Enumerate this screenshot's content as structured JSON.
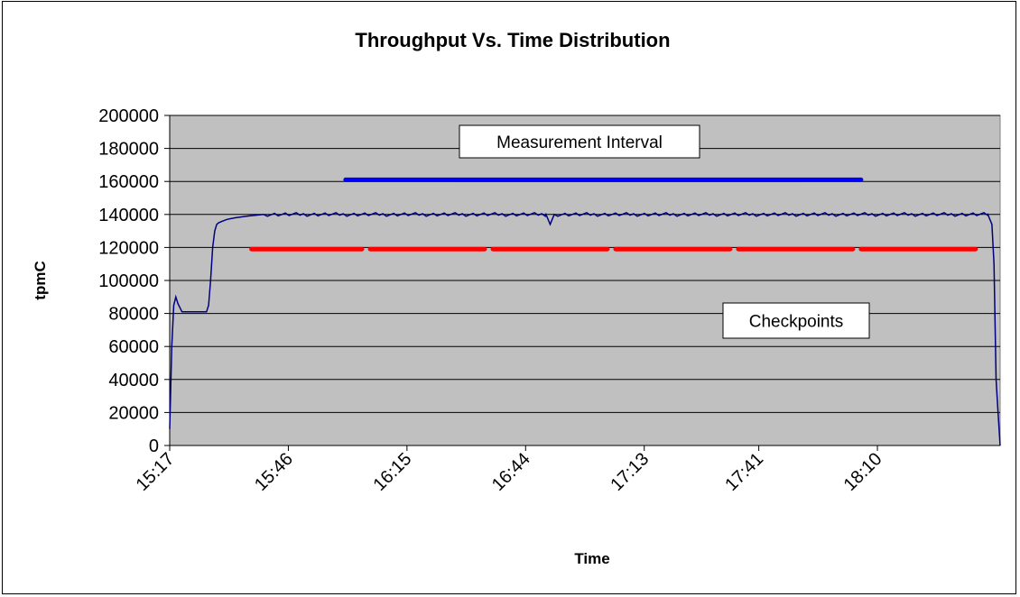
{
  "chart_data": {
    "type": "line",
    "title": "Throughput Vs. Time Distribution",
    "xlabel": "Time",
    "ylabel": "tpmC",
    "ylim": [
      0,
      200000
    ],
    "yticks": [
      0,
      20000,
      40000,
      60000,
      80000,
      100000,
      120000,
      140000,
      160000,
      180000,
      200000
    ],
    "x_start": "15:17",
    "x_end": "18:40",
    "xticks": [
      "15:17",
      "15:46",
      "16:15",
      "16:44",
      "17:13",
      "17:41",
      "18:10"
    ],
    "grid": true,
    "plot_background": "#c0c0c0",
    "series": [
      {
        "color": "#000080",
        "points": [
          [
            "15:17",
            10000
          ],
          [
            "15:17.5",
            60000
          ],
          [
            "15:18",
            85000
          ],
          [
            "15:18.5",
            90000
          ],
          [
            "15:19",
            86000
          ],
          [
            "15:20",
            81000
          ],
          [
            "15:21",
            81000
          ],
          [
            "15:25",
            81000
          ],
          [
            "15:26",
            81000
          ],
          [
            "15:26.5",
            85000
          ],
          [
            "15:27",
            100000
          ],
          [
            "15:27.5",
            120000
          ],
          [
            "15:28",
            130000
          ],
          [
            "15:28.5",
            134000
          ],
          [
            "15:29",
            135000
          ],
          [
            "15:30",
            136000
          ],
          [
            "15:31",
            137000
          ],
          [
            "15:33",
            138000
          ],
          [
            "15:36",
            139000
          ],
          [
            "15:40",
            140000
          ],
          [
            "16:49",
            140000
          ],
          [
            "16:50",
            134000
          ],
          [
            "16:51",
            140000
          ],
          [
            "18:37",
            140000
          ],
          [
            "18:38",
            134000
          ],
          [
            "18:38.5",
            110000
          ],
          [
            "18:39",
            40000
          ],
          [
            "18:39.5",
            20000
          ],
          [
            "18:40",
            0
          ]
        ]
      }
    ],
    "measurement_interval": {
      "label": "Measurement Interval",
      "start": "16:00",
      "end": "18:06",
      "level": 161000,
      "color": "#0000ff"
    },
    "checkpoints": {
      "label": "Checkpoints",
      "level": 119000,
      "color": "#ff0000",
      "segments": [
        [
          "15:37",
          "16:04"
        ],
        [
          "16:06",
          "16:34"
        ],
        [
          "16:36",
          "17:04"
        ],
        [
          "17:06",
          "17:34"
        ],
        [
          "17:36",
          "18:04"
        ],
        [
          "18:06",
          "18:34"
        ]
      ]
    }
  }
}
